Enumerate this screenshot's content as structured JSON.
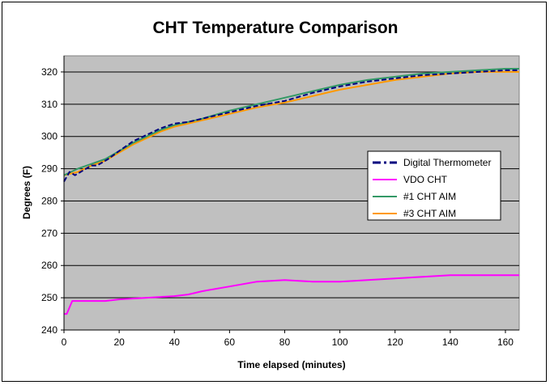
{
  "chart_data": {
    "type": "line",
    "title": "CHT Temperature Comparison",
    "xlabel": "Time elapsed (minutes)",
    "ylabel": "Degrees (F)",
    "xlim": [
      0,
      165
    ],
    "ylim": [
      240,
      325
    ],
    "xticks": [
      0,
      20,
      40,
      60,
      80,
      100,
      120,
      140,
      160
    ],
    "yticks": [
      240,
      250,
      260,
      270,
      280,
      290,
      300,
      310,
      320
    ],
    "grid": "horizontal",
    "plot_background": "#c0c0c0",
    "legend_position": "right",
    "series": [
      {
        "name": "Digital Thermometer",
        "color": "#000080",
        "dashed": true,
        "x": [
          0,
          2,
          4,
          6,
          8,
          10,
          12,
          14,
          16,
          20,
          25,
          30,
          35,
          40,
          45,
          50,
          60,
          70,
          80,
          90,
          100,
          110,
          120,
          130,
          140,
          150,
          160,
          165
        ],
        "y": [
          286,
          289,
          288,
          289,
          290,
          291,
          291,
          292,
          293,
          295.5,
          298.5,
          300.5,
          302.5,
          304,
          304.5,
          305.5,
          307.5,
          309.5,
          311,
          313.5,
          315.5,
          317,
          318,
          319,
          319.5,
          320,
          320.5,
          320.5
        ]
      },
      {
        "name": "VDO CHT",
        "color": "#ff00ff",
        "dashed": false,
        "x": [
          0,
          1,
          2,
          3,
          5,
          10,
          15,
          20,
          30,
          40,
          45,
          50,
          60,
          70,
          80,
          90,
          100,
          110,
          120,
          130,
          140,
          150,
          160,
          165
        ],
        "y": [
          245,
          245,
          247,
          249,
          249,
          249,
          249,
          249.5,
          250,
          250.5,
          251,
          252,
          253.5,
          255,
          255.5,
          255,
          255,
          255.5,
          256,
          256.5,
          257,
          257,
          257,
          257
        ]
      },
      {
        "name": "#1 CHT AIM",
        "color": "#339966",
        "dashed": false,
        "x": [
          0,
          5,
          10,
          15,
          20,
          25,
          30,
          35,
          40,
          45,
          50,
          60,
          70,
          80,
          90,
          100,
          110,
          120,
          130,
          140,
          150,
          160,
          165
        ],
        "y": [
          288,
          290,
          291.5,
          293,
          295.5,
          298,
          300,
          302,
          303.5,
          304.5,
          305.5,
          308,
          310,
          312,
          314,
          316,
          317.5,
          318.5,
          319.5,
          320,
          320.5,
          321,
          321
        ]
      },
      {
        "name": "#3 CHT AIM",
        "color": "#ff9900",
        "dashed": false,
        "x": [
          0,
          5,
          10,
          15,
          20,
          25,
          30,
          35,
          40,
          45,
          50,
          60,
          70,
          80,
          90,
          100,
          110,
          120,
          130,
          140,
          150,
          160,
          165
        ],
        "y": [
          288,
          289,
          291,
          292.5,
          295,
          297.5,
          299.5,
          301.5,
          303,
          304,
          305,
          307,
          309,
          310.5,
          312.5,
          314.5,
          316,
          317.5,
          318.5,
          319.5,
          320,
          320,
          320
        ]
      }
    ]
  }
}
